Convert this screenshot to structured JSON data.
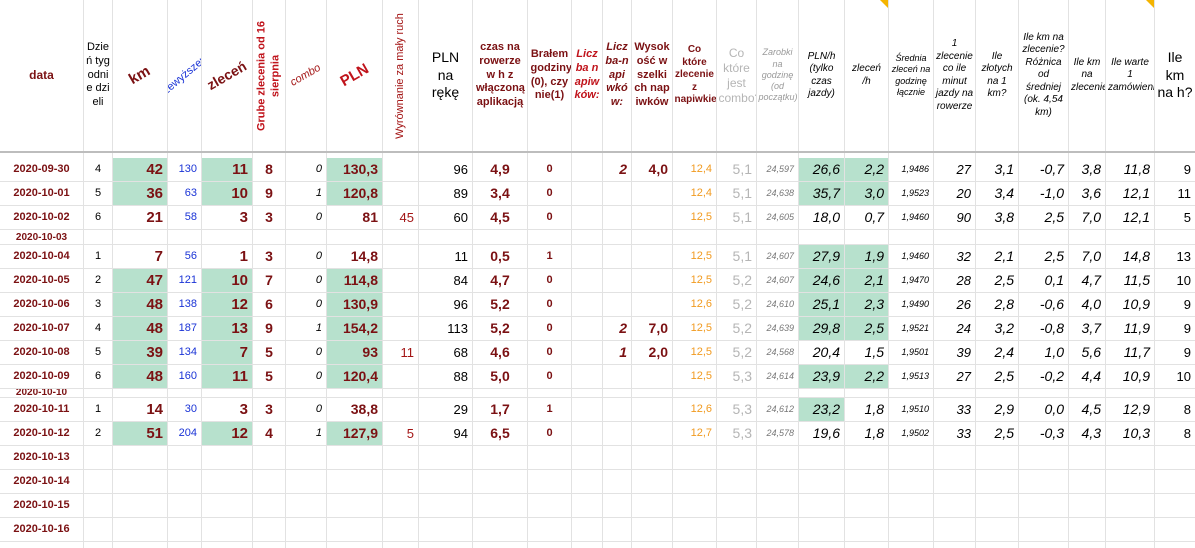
{
  "headers": {
    "data": "data",
    "dzien": "Dzień tygodnie dzieli",
    "km": "km",
    "przewyzszenia": "przewyższenia",
    "zlecen": "zleceń",
    "grube": "Grube zlecenia od 16 sierpnia",
    "combo": "combo",
    "pln": "PLN",
    "wyrownanie": "Wyrównanie za mały ruch",
    "pln_reka": "PLN na rękę",
    "czas": "czas na rowerze w h z włączoną aplikacją",
    "bralem": "Brałem godziny (0), czy nie(1)",
    "liczba_napiwkow": "Liczba napiwków:",
    "liczba_n": "Liczba-n apiwków:",
    "wysokosc": "Wysokość wszelkich napiwków",
    "co_ktore_napiwek": "Co które zlecenie z napiwkiem?",
    "co_ktore_combo": "Co które jest combo?",
    "zarobki": "Zarobki na godzinę (od początku)",
    "pln_h": "PLN/h (tylko czas jazdy)",
    "zlecen_h": "zleceń /h",
    "srednia": "Średnia zleceń na godzinę łącznie",
    "minut": "1 zlecenie co ile minut jazdy na rowerze",
    "zlotych_km": "Ile złotych na 1 km?",
    "ile_km_roznica": "Ile km na zlecenie? Różnica od średniej (ok. 4,54 km)",
    "ile_km_zlecenie": "Ile km na zlecenie?",
    "warte": "Ile warte 1 zamówienie?",
    "km_h": "Ile km na h?"
  },
  "rows": [
    {
      "date": "2020-09-30",
      "dz": "4",
      "km": "42",
      "prz": "130",
      "zl": "11",
      "gr": "8",
      "co": "0",
      "pln": "130,3",
      "wy": "",
      "reka": "96",
      "czas": "4,9",
      "br": "0",
      "ln": "2",
      "wys": "4,0",
      "nap": "12,4",
      "cmb": "5,1",
      "zar": "24,597",
      "plnh": "26,6",
      "zlh": "2,2",
      "sr": "1,9486",
      "min": "27",
      "zkm": "3,1",
      "diff": "-0,7",
      "kmz": "3,8",
      "wart": "11,8",
      "kmh": "9"
    },
    {
      "date": "2020-10-01",
      "dz": "5",
      "km": "36",
      "prz": "63",
      "zl": "10",
      "gr": "9",
      "co": "1",
      "pln": "120,8",
      "wy": "",
      "reka": "89",
      "czas": "3,4",
      "br": "0",
      "ln": "",
      "wys": "",
      "nap": "12,4",
      "cmb": "5,1",
      "zar": "24,638",
      "plnh": "35,7",
      "zlh": "3,0",
      "sr": "1,9523",
      "min": "20",
      "zkm": "3,4",
      "diff": "-1,0",
      "kmz": "3,6",
      "wart": "12,1",
      "kmh": "11"
    },
    {
      "date": "2020-10-02",
      "dz": "6",
      "km": "21",
      "prz": "58",
      "zl": "3",
      "gr": "3",
      "co": "0",
      "pln": "81",
      "wy": "45",
      "reka": "60",
      "czas": "4,5",
      "br": "0",
      "ln": "",
      "wys": "",
      "nap": "12,5",
      "cmb": "5,1",
      "zar": "24,605",
      "plnh": "18,0",
      "zlh": "0,7",
      "sr": "1,9460",
      "min": "90",
      "zkm": "3,8",
      "diff": "2,5",
      "kmz": "7,0",
      "wart": "12,1",
      "kmh": "5"
    },
    {
      "date": "2020-10-03",
      "dz": "",
      "km": "",
      "prz": "",
      "zl": "",
      "gr": "",
      "co": "",
      "pln": "",
      "wy": "",
      "reka": "",
      "czas": "",
      "br": "",
      "ln": "",
      "wys": "",
      "nap": "",
      "cmb": "",
      "zar": "",
      "plnh": "",
      "zlh": "",
      "sr": "",
      "min": "",
      "zkm": "",
      "diff": "",
      "kmz": "",
      "wart": "",
      "kmh": ""
    },
    {
      "date": "2020-10-04",
      "dz": "1",
      "km": "7",
      "prz": "56",
      "zl": "1",
      "gr": "3",
      "co": "0",
      "pln": "14,8",
      "wy": "",
      "reka": "11",
      "czas": "0,5",
      "br": "1",
      "ln": "",
      "wys": "",
      "nap": "12,5",
      "cmb": "5,1",
      "zar": "24,607",
      "plnh": "27,9",
      "zlh": "1,9",
      "sr": "1,9460",
      "min": "32",
      "zkm": "2,1",
      "diff": "2,5",
      "kmz": "7,0",
      "wart": "14,8",
      "kmh": "13"
    },
    {
      "date": "2020-10-05",
      "dz": "2",
      "km": "47",
      "prz": "121",
      "zl": "10",
      "gr": "7",
      "co": "0",
      "pln": "114,8",
      "wy": "",
      "reka": "84",
      "czas": "4,7",
      "br": "0",
      "ln": "",
      "wys": "",
      "nap": "12,5",
      "cmb": "5,2",
      "zar": "24,607",
      "plnh": "24,6",
      "zlh": "2,1",
      "sr": "1,9470",
      "min": "28",
      "zkm": "2,5",
      "diff": "0,1",
      "kmz": "4,7",
      "wart": "11,5",
      "kmh": "10"
    },
    {
      "date": "2020-10-06",
      "dz": "3",
      "km": "48",
      "prz": "138",
      "zl": "12",
      "gr": "6",
      "co": "0",
      "pln": "130,9",
      "wy": "",
      "reka": "96",
      "czas": "5,2",
      "br": "0",
      "ln": "",
      "wys": "",
      "nap": "12,6",
      "cmb": "5,2",
      "zar": "24,610",
      "plnh": "25,1",
      "zlh": "2,3",
      "sr": "1,9490",
      "min": "26",
      "zkm": "2,8",
      "diff": "-0,6",
      "kmz": "4,0",
      "wart": "10,9",
      "kmh": "9"
    },
    {
      "date": "2020-10-07",
      "dz": "4",
      "km": "48",
      "prz": "187",
      "zl": "13",
      "gr": "9",
      "co": "1",
      "pln": "154,2",
      "wy": "",
      "reka": "113",
      "czas": "5,2",
      "br": "0",
      "ln": "2",
      "wys": "7,0",
      "nap": "12,5",
      "cmb": "5,2",
      "zar": "24,639",
      "plnh": "29,8",
      "zlh": "2,5",
      "sr": "1,9521",
      "min": "24",
      "zkm": "3,2",
      "diff": "-0,8",
      "kmz": "3,7",
      "wart": "11,9",
      "kmh": "9"
    },
    {
      "date": "2020-10-08",
      "dz": "5",
      "km": "39",
      "prz": "134",
      "zl": "7",
      "gr": "5",
      "co": "0",
      "pln": "93",
      "wy": "11",
      "reka": "68",
      "czas": "4,6",
      "br": "0",
      "ln": "1",
      "wys": "2,0",
      "nap": "12,5",
      "cmb": "5,2",
      "zar": "24,568",
      "plnh": "20,4",
      "zlh": "1,5",
      "sr": "1,9501",
      "min": "39",
      "zkm": "2,4",
      "diff": "1,0",
      "kmz": "5,6",
      "wart": "11,7",
      "kmh": "9"
    },
    {
      "date": "2020-10-09",
      "dz": "6",
      "km": "48",
      "prz": "160",
      "zl": "11",
      "gr": "5",
      "co": "0",
      "pln": "120,4",
      "wy": "",
      "reka": "88",
      "czas": "5,0",
      "br": "0",
      "ln": "",
      "wys": "",
      "nap": "12,5",
      "cmb": "5,3",
      "zar": "24,614",
      "plnh": "23,9",
      "zlh": "2,2",
      "sr": "1,9513",
      "min": "27",
      "zkm": "2,5",
      "diff": "-0,2",
      "kmz": "4,4",
      "wart": "10,9",
      "kmh": "10"
    },
    {
      "date": "2020-10-10",
      "dz": "",
      "km": "",
      "prz": "",
      "zl": "",
      "gr": "",
      "co": "",
      "pln": "",
      "wy": "",
      "reka": "",
      "czas": "",
      "br": "",
      "ln": "",
      "wys": "",
      "nap": "",
      "cmb": "",
      "zar": "",
      "plnh": "",
      "zlh": "",
      "sr": "",
      "min": "",
      "zkm": "",
      "diff": "",
      "kmz": "",
      "wart": "",
      "kmh": ""
    },
    {
      "date": "2020-10-11",
      "dz": "1",
      "km": "14",
      "prz": "30",
      "zl": "3",
      "gr": "3",
      "co": "0",
      "pln": "38,8",
      "wy": "",
      "reka": "29",
      "czas": "1,7",
      "br": "1",
      "ln": "",
      "wys": "",
      "nap": "12,6",
      "cmb": "5,3",
      "zar": "24,612",
      "plnh": "23,2",
      "zlh": "1,8",
      "sr": "1,9510",
      "min": "33",
      "zkm": "2,9",
      "diff": "0,0",
      "kmz": "4,5",
      "wart": "12,9",
      "kmh": "8"
    },
    {
      "date": "2020-10-12",
      "dz": "2",
      "km": "51",
      "prz": "204",
      "zl": "12",
      "gr": "4",
      "co": "1",
      "pln": "127,9",
      "wy": "5",
      "reka": "94",
      "czas": "6,5",
      "br": "0",
      "ln": "",
      "wys": "",
      "nap": "12,7",
      "cmb": "5,3",
      "zar": "24,578",
      "plnh": "19,6",
      "zlh": "1,8",
      "sr": "1,9502",
      "min": "33",
      "zkm": "2,5",
      "diff": "-0,3",
      "kmz": "4,3",
      "wart": "10,3",
      "kmh": "8"
    },
    {
      "date": "2020-10-13",
      "dz": "",
      "km": "",
      "prz": "",
      "zl": "",
      "gr": "",
      "co": "",
      "pln": "",
      "wy": "",
      "reka": "",
      "czas": "",
      "br": "",
      "ln": "",
      "wys": "",
      "nap": "",
      "cmb": "",
      "zar": "",
      "plnh": "",
      "zlh": "",
      "sr": "",
      "min": "",
      "zkm": "",
      "diff": "",
      "kmz": "",
      "wart": "",
      "kmh": ""
    },
    {
      "date": "2020-10-14",
      "dz": "",
      "km": "",
      "prz": "",
      "zl": "",
      "gr": "",
      "co": "",
      "pln": "",
      "wy": "",
      "reka": "",
      "czas": "",
      "br": "",
      "ln": "",
      "wys": "",
      "nap": "",
      "cmb": "",
      "zar": "",
      "plnh": "",
      "zlh": "",
      "sr": "",
      "min": "",
      "zkm": "",
      "diff": "",
      "kmz": "",
      "wart": "",
      "kmh": ""
    },
    {
      "date": "2020-10-15",
      "dz": "",
      "km": "",
      "prz": "",
      "zl": "",
      "gr": "",
      "co": "",
      "pln": "",
      "wy": "",
      "reka": "",
      "czas": "",
      "br": "",
      "ln": "",
      "wys": "",
      "nap": "",
      "cmb": "",
      "zar": "",
      "plnh": "",
      "zlh": "",
      "sr": "",
      "min": "",
      "zkm": "",
      "diff": "",
      "kmz": "",
      "wart": "",
      "kmh": ""
    },
    {
      "date": "2020-10-16",
      "dz": "",
      "km": "",
      "prz": "",
      "zl": "",
      "gr": "",
      "co": "",
      "pln": "",
      "wy": "",
      "reka": "",
      "czas": "",
      "br": "",
      "ln": "",
      "wys": "",
      "nap": "",
      "cmb": "",
      "zar": "",
      "plnh": "",
      "zlh": "",
      "sr": "",
      "min": "",
      "zkm": "",
      "diff": "",
      "kmz": "",
      "wart": "",
      "kmh": ""
    }
  ],
  "highlights": {
    "green_rows_km": [
      "2020-09-30",
      "2020-10-01",
      "2020-10-05",
      "2020-10-06",
      "2020-10-07",
      "2020-10-08",
      "2020-10-09",
      "2020-10-12"
    ],
    "green_rows_plnh": [
      "2020-09-30",
      "2020-10-01",
      "2020-10-04",
      "2020-10-05",
      "2020-10-06",
      "2020-10-07",
      "2020-10-09",
      "2020-10-11"
    ],
    "green_rows_zlh": [
      "2020-09-30",
      "2020-10-01",
      "2020-10-04",
      "2020-10-05",
      "2020-10-06",
      "2020-10-07",
      "2020-10-09"
    ],
    "colors": {
      "green": "#b7e1cd",
      "dark_red": "#7b1113",
      "blue": "#1a33d6",
      "orange": "#f19a1f",
      "grey": "#b5b5b5"
    }
  }
}
